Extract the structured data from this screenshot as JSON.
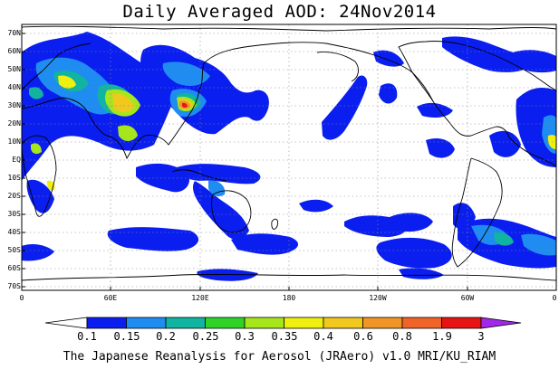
{
  "title": "Daily Averaged AOD: 24Nov2014",
  "credit": "The Japanese Reanalysis for Aerosol (JRAero) v1.0 MRI/KU_RIAM",
  "lat_labels": [
    "70N",
    "60N",
    "50N",
    "40N",
    "30N",
    "20N",
    "10N",
    "EQ",
    "10S",
    "20S",
    "30S",
    "40S",
    "50S",
    "60S",
    "70S"
  ],
  "lon_labels": [
    "0",
    "60E",
    "120E",
    "180",
    "120W",
    "60W",
    "0"
  ],
  "colorbar": {
    "labels": [
      "0.1",
      "0.15",
      "0.2",
      "0.25",
      "0.3",
      "0.35",
      "0.4",
      "0.6",
      "0.8",
      "1.9",
      "3"
    ],
    "colors": [
      "#ffffff",
      "#0a1ef0",
      "#1e8cf0",
      "#10b4a0",
      "#30d228",
      "#a6e61c",
      "#f0f010",
      "#f0c81e",
      "#f09628",
      "#f0642a",
      "#e61414",
      "#a028e6"
    ]
  }
}
